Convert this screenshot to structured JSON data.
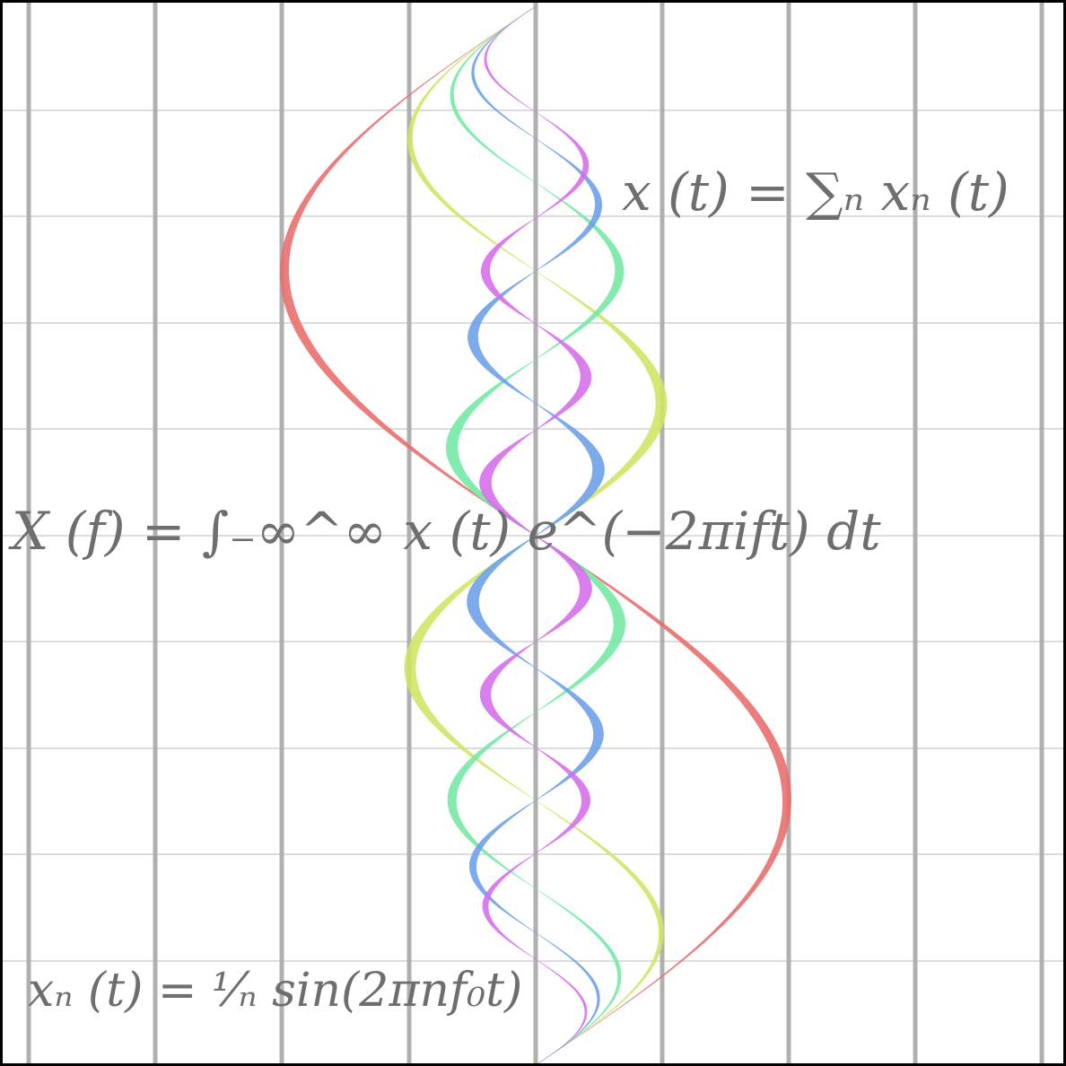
{
  "formulas": {
    "sum": "x (t) = ∑ₙ xₙ (t)",
    "fourier": "X (f) = ∫₋∞^∞ x (t) e^(−2πift) dt",
    "component": "xₙ (t) = ¹⁄ₙ sin(2πnf₀t)"
  },
  "waves": [
    {
      "harmonic": 1,
      "color": "#e86b6b"
    },
    {
      "harmonic": 2,
      "color": "#cfe562"
    },
    {
      "harmonic": 3,
      "color": "#72e8a3"
    },
    {
      "harmonic": 4,
      "color": "#6a9ee8"
    },
    {
      "harmonic": 5,
      "color": "#d56cea"
    }
  ],
  "grid": {
    "major_line_color": "#b0b0b0",
    "minor_line_color": "#c8c8c8",
    "visible": true
  }
}
